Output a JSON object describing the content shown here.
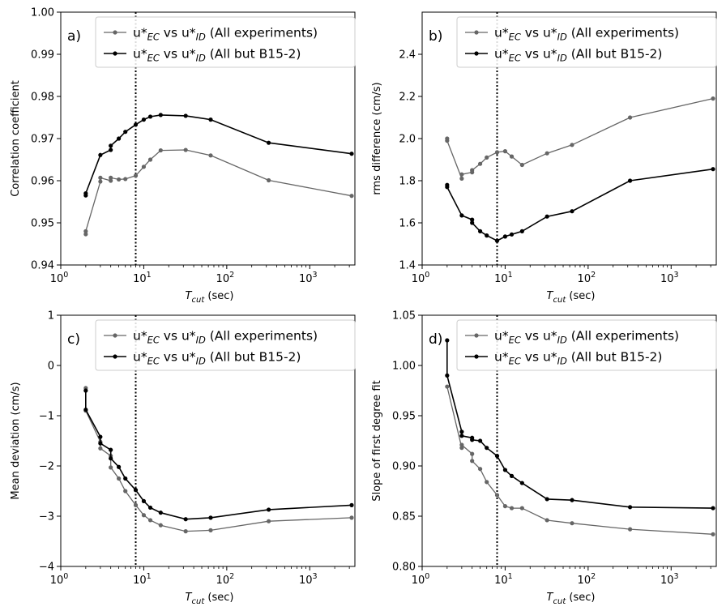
{
  "chart_data": [
    {
      "type": "line",
      "panel_label": "a)",
      "xscale": "log",
      "xlim": [
        1,
        3500
      ],
      "ylim": [
        0.94,
        1.0
      ],
      "xlabel": "T_cut (sec)",
      "xlabel_main": "T",
      "xlabel_sub": "cut",
      "xlabel_rest": " (sec)",
      "ylabel": "Correlation coefficient",
      "yticks": [
        "0.94",
        "0.95",
        "0.96",
        "0.97",
        "0.98",
        "0.99",
        "1.00"
      ],
      "xticks": [
        {
          "base": "10",
          "exp": "0"
        },
        {
          "base": "10",
          "exp": "1"
        },
        {
          "base": "10",
          "exp": "2"
        },
        {
          "base": "10",
          "exp": "3"
        }
      ],
      "vline_x": 8,
      "legend_position": "top-right",
      "series": [
        {
          "legend_lead": "u*",
          "legend_sub1": "EC",
          "legend_mid": " vs u*",
          "legend_sub2": "ID",
          "legend_tail": " (All experiments)",
          "color": "#666666",
          "points": [
            [
              2,
              0.9473
            ],
            [
              2,
              0.948
            ],
            [
              3,
              0.9598
            ],
            [
              3,
              0.9607
            ],
            [
              4,
              0.96
            ],
            [
              4,
              0.9607
            ],
            [
              5,
              0.9603
            ],
            [
              6,
              0.9604
            ],
            [
              8,
              0.9612
            ],
            [
              10,
              0.9633
            ],
            [
              12,
              0.965
            ],
            [
              16,
              0.9672
            ],
            [
              32,
              0.9673
            ],
            [
              64,
              0.966
            ],
            [
              320,
              0.9601
            ],
            [
              3200,
              0.9564
            ]
          ]
        },
        {
          "legend_lead": "u*",
          "legend_sub1": "EC",
          "legend_mid": " vs u*",
          "legend_sub2": "ID",
          "legend_tail": " (All but B15-2)",
          "color": "#000000",
          "points": [
            [
              2,
              0.9565
            ],
            [
              2,
              0.957
            ],
            [
              3,
              0.9661
            ],
            [
              4,
              0.9673
            ],
            [
              4,
              0.9683
            ],
            [
              5,
              0.97
            ],
            [
              6,
              0.9716
            ],
            [
              8,
              0.9733
            ],
            [
              10,
              0.9745
            ],
            [
              12,
              0.9752
            ],
            [
              16,
              0.9756
            ],
            [
              32,
              0.9754
            ],
            [
              64,
              0.9745
            ],
            [
              320,
              0.969
            ],
            [
              3200,
              0.9664
            ]
          ]
        }
      ]
    },
    {
      "type": "line",
      "panel_label": "b)",
      "xscale": "log",
      "xlim": [
        1,
        3500
      ],
      "ylim": [
        1.4,
        2.6
      ],
      "xlabel": "T_cut (sec)",
      "xlabel_main": "T",
      "xlabel_sub": "cut",
      "xlabel_rest": " (sec)",
      "ylabel": "rms difference (cm/s)",
      "yticks": [
        "1.4",
        "1.6",
        "1.8",
        "2.0",
        "2.2",
        "2.4"
      ],
      "xticks": [
        {
          "base": "10",
          "exp": "0"
        },
        {
          "base": "10",
          "exp": "1"
        },
        {
          "base": "10",
          "exp": "2"
        },
        {
          "base": "10",
          "exp": "3"
        }
      ],
      "vline_x": 8,
      "legend_position": "top-right",
      "series": [
        {
          "legend_lead": "u*",
          "legend_sub1": "EC",
          "legend_mid": " vs u*",
          "legend_sub2": "ID",
          "legend_tail": " (All experiments)",
          "color": "#666666",
          "points": [
            [
              2,
              2.0
            ],
            [
              2,
              1.99
            ],
            [
              3,
              1.81
            ],
            [
              3,
              1.83
            ],
            [
              4,
              1.84
            ],
            [
              4,
              1.85
            ],
            [
              5,
              1.88
            ],
            [
              6,
              1.91
            ],
            [
              8,
              1.935
            ],
            [
              10,
              1.94
            ],
            [
              12,
              1.915
            ],
            [
              16,
              1.875
            ],
            [
              32,
              1.93
            ],
            [
              64,
              1.97
            ],
            [
              320,
              2.1
            ],
            [
              3200,
              2.19
            ]
          ]
        },
        {
          "legend_lead": "u*",
          "legend_sub1": "EC",
          "legend_mid": " vs u*",
          "legend_sub2": "ID",
          "legend_tail": " (All but B15-2)",
          "color": "#000000",
          "points": [
            [
              2,
              1.78
            ],
            [
              2,
              1.77
            ],
            [
              3,
              1.635
            ],
            [
              4,
              1.615
            ],
            [
              4,
              1.6
            ],
            [
              5,
              1.56
            ],
            [
              6,
              1.54
            ],
            [
              8,
              1.515
            ],
            [
              10,
              1.535
            ],
            [
              12,
              1.545
            ],
            [
              16,
              1.56
            ],
            [
              32,
              1.63
            ],
            [
              64,
              1.655
            ],
            [
              320,
              1.8
            ],
            [
              3200,
              1.855
            ]
          ]
        }
      ]
    },
    {
      "type": "line",
      "panel_label": "c)",
      "xscale": "log",
      "xlim": [
        1,
        3500
      ],
      "ylim": [
        -4,
        1
      ],
      "xlabel": "T_cut (sec)",
      "xlabel_main": "T",
      "xlabel_sub": "cut",
      "xlabel_rest": " (sec)",
      "ylabel": "Mean deviation (cm/s)",
      "yticks": [
        "−4",
        "−3",
        "−2",
        "−1",
        "0",
        "1"
      ],
      "xticks": [
        {
          "base": "10",
          "exp": "0"
        },
        {
          "base": "10",
          "exp": "1"
        },
        {
          "base": "10",
          "exp": "2"
        },
        {
          "base": "10",
          "exp": "3"
        }
      ],
      "vline_x": 8,
      "legend_position": "top-right",
      "series": [
        {
          "legend_lead": "u*",
          "legend_sub1": "EC",
          "legend_mid": " vs u*",
          "legend_sub2": "ID",
          "legend_tail": " (All experiments)",
          "color": "#666666",
          "points": [
            [
              2,
              -0.45
            ],
            [
              2,
              -0.9
            ],
            [
              3,
              -1.52
            ],
            [
              3,
              -1.65
            ],
            [
              4,
              -1.8
            ],
            [
              4,
              -2.03
            ],
            [
              5,
              -2.25
            ],
            [
              6,
              -2.5
            ],
            [
              8,
              -2.78
            ],
            [
              10,
              -2.98
            ],
            [
              12,
              -3.08
            ],
            [
              16,
              -3.18
            ],
            [
              32,
              -3.3
            ],
            [
              64,
              -3.28
            ],
            [
              320,
              -3.1
            ],
            [
              3200,
              -3.03
            ]
          ]
        },
        {
          "legend_lead": "u*",
          "legend_sub1": "EC",
          "legend_mid": " vs u*",
          "legend_sub2": "ID",
          "legend_tail": " (All but B15-2)",
          "color": "#000000",
          "points": [
            [
              2,
              -0.5
            ],
            [
              2,
              -0.88
            ],
            [
              3,
              -1.42
            ],
            [
              3,
              -1.55
            ],
            [
              4,
              -1.68
            ],
            [
              4,
              -1.85
            ],
            [
              5,
              -2.02
            ],
            [
              6,
              -2.25
            ],
            [
              8,
              -2.48
            ],
            [
              10,
              -2.7
            ],
            [
              12,
              -2.83
            ],
            [
              16,
              -2.93
            ],
            [
              32,
              -3.06
            ],
            [
              64,
              -3.03
            ],
            [
              320,
              -2.87
            ],
            [
              3200,
              -2.78
            ]
          ]
        }
      ]
    },
    {
      "type": "line",
      "panel_label": "d)",
      "xscale": "log",
      "xlim": [
        1,
        3500
      ],
      "ylim": [
        0.8,
        1.05
      ],
      "xlabel": "T_cut (sec)",
      "xlabel_main": "T",
      "xlabel_sub": "cut",
      "xlabel_rest": " (sec)",
      "ylabel": "Slope of first degree fit",
      "yticks": [
        "0.80",
        "0.85",
        "0.90",
        "0.95",
        "1.00",
        "1.05"
      ],
      "xticks": [
        {
          "base": "10",
          "exp": "0"
        },
        {
          "base": "10",
          "exp": "1"
        },
        {
          "base": "10",
          "exp": "2"
        },
        {
          "base": "10",
          "exp": "3"
        }
      ],
      "vline_x": 8,
      "legend_position": "top-right",
      "series": [
        {
          "legend_lead": "u*",
          "legend_sub1": "EC",
          "legend_mid": " vs u*",
          "legend_sub2": "ID",
          "legend_tail": " (All experiments)",
          "color": "#666666",
          "points": [
            [
              2,
              0.979
            ],
            [
              3,
              0.918
            ],
            [
              3,
              0.921
            ],
            [
              4,
              0.912
            ],
            [
              4,
              0.905
            ],
            [
              5,
              0.897
            ],
            [
              6,
              0.884
            ],
            [
              8,
              0.871
            ],
            [
              10,
              0.86
            ],
            [
              12,
              0.858
            ],
            [
              16,
              0.858
            ],
            [
              32,
              0.846
            ],
            [
              64,
              0.843
            ],
            [
              320,
              0.837
            ],
            [
              3200,
              0.832
            ]
          ]
        },
        {
          "legend_lead": "u*",
          "legend_sub1": "EC",
          "legend_mid": " vs u*",
          "legend_sub2": "ID",
          "legend_tail": " (All but B15-2)",
          "color": "#000000",
          "points": [
            [
              2,
              1.025
            ],
            [
              2,
              0.99
            ],
            [
              3,
              0.934
            ],
            [
              3,
              0.93
            ],
            [
              4,
              0.928
            ],
            [
              4,
              0.926
            ],
            [
              5,
              0.925
            ],
            [
              6,
              0.918
            ],
            [
              8,
              0.91
            ],
            [
              10,
              0.896
            ],
            [
              12,
              0.89
            ],
            [
              16,
              0.883
            ],
            [
              32,
              0.867
            ],
            [
              64,
              0.866
            ],
            [
              320,
              0.859
            ],
            [
              3200,
              0.858
            ]
          ]
        }
      ]
    }
  ]
}
